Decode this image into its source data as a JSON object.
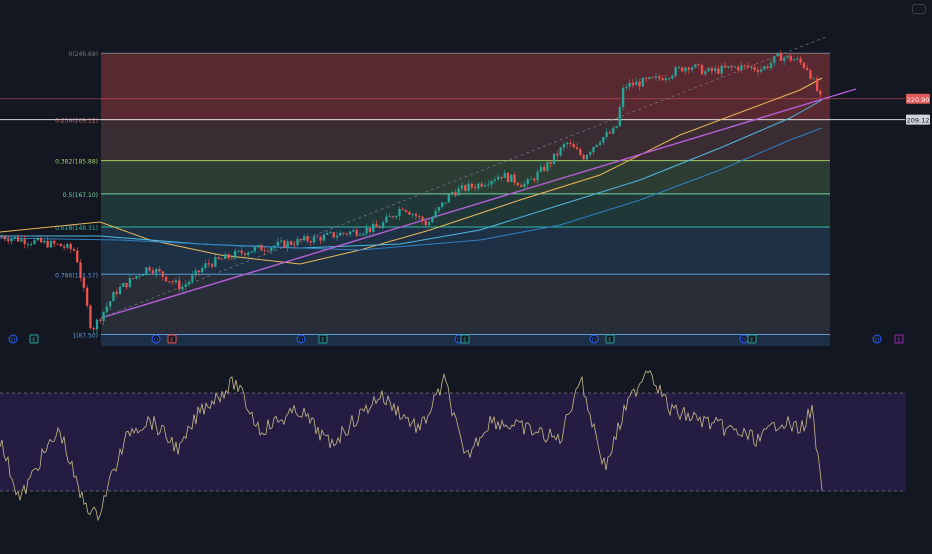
{
  "chart_data": {
    "type": "candlestick",
    "price_axis": {
      "ylim": [
        81,
        257
      ]
    },
    "fib_levels": [
      {
        "label": "0(246.69)",
        "value": 246.69,
        "color": "#787b86",
        "fill": "#5c2a32"
      },
      {
        "label": "0.236(209.12)",
        "value": 209.12,
        "color": "#e05b5b",
        "fill": "#3b2d34"
      },
      {
        "label": "0.382(185.88)",
        "value": 185.88,
        "color": "#9ccc65",
        "fill": "#2f3f35"
      },
      {
        "label": "0.5(167.10)",
        "value": 167.1,
        "color": "#6fd3a0",
        "fill": "#21393a"
      },
      {
        "label": "0.618(148.31)",
        "value": 148.31,
        "color": "#2db8a6",
        "fill": "#1f3347"
      },
      {
        "label": "0.786(121.57)",
        "value": 121.57,
        "color": "#5a9bd5",
        "fill": "#2a2e39"
      },
      {
        "label": "1(87.50)",
        "value": 87.5,
        "color": "#5a9bd5",
        "fill": "#1e3048"
      }
    ],
    "price_labels": {
      "last": "220.90",
      "level": "209.12"
    },
    "events": {
      "chart_row": [
        "D",
        "E",
        "D",
        "E",
        "D",
        "E",
        "D",
        "E",
        "D",
        "E",
        "D",
        "E"
      ],
      "right_row": [
        "D",
        "E"
      ]
    },
    "moving_average_colors": [
      "#e8b85a",
      "#4fb7e0",
      "#2f7fc0"
    ],
    "trendline_color": "#b45fd6",
    "oscillator": {
      "line_color": "#c8b98a",
      "band_fill": "#2a1f4a",
      "band_line": "#787b86"
    },
    "colors": {
      "up": "#26a69a",
      "down": "#ef5350",
      "background": "#131722",
      "axis_text": "#b2b5be"
    }
  }
}
